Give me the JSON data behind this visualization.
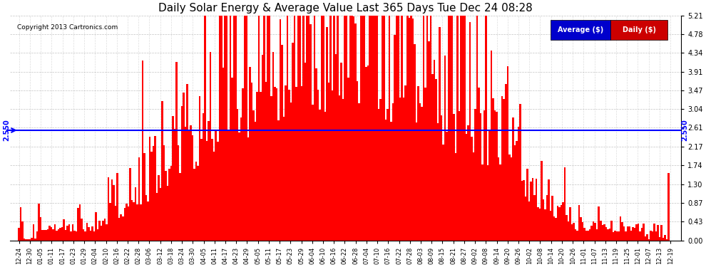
{
  "title": "Daily Solar Energy & Average Value Last 365 Days Tue Dec 24 08:28",
  "copyright": "Copyright 2013 Cartronics.com",
  "average_value": 2.55,
  "average_label": "2.550",
  "ylim": [
    0.0,
    5.21
  ],
  "yticks": [
    0.0,
    0.43,
    0.87,
    1.3,
    1.74,
    2.17,
    2.61,
    3.04,
    3.47,
    3.91,
    4.34,
    4.78,
    5.21
  ],
  "bar_color": "#ff0000",
  "avg_line_color": "#0000ff",
  "background_color": "#ffffff",
  "plot_bg_color": "#ffffff",
  "grid_color": "#aaaaaa",
  "legend_avg_bg": "#0000cc",
  "legend_daily_bg": "#cc0000",
  "legend_text": "white",
  "x_tick_labels": [
    "12-24",
    "12-30",
    "01-05",
    "01-11",
    "01-17",
    "01-23",
    "01-29",
    "02-04",
    "02-10",
    "02-16",
    "02-22",
    "02-28",
    "03-06",
    "03-12",
    "03-18",
    "03-24",
    "03-30",
    "04-05",
    "04-11",
    "04-17",
    "04-23",
    "04-29",
    "05-05",
    "05-11",
    "05-17",
    "05-23",
    "05-29",
    "06-04",
    "06-10",
    "06-16",
    "06-22",
    "06-28",
    "07-04",
    "07-10",
    "07-16",
    "07-22",
    "07-28",
    "08-03",
    "08-09",
    "08-15",
    "08-21",
    "08-27",
    "09-02",
    "09-08",
    "09-14",
    "09-20",
    "09-26",
    "10-02",
    "10-08",
    "10-14",
    "10-20",
    "10-26",
    "11-01",
    "11-07",
    "11-13",
    "11-19",
    "11-25",
    "12-01",
    "12-07",
    "12-13",
    "12-19"
  ],
  "seed": 42
}
